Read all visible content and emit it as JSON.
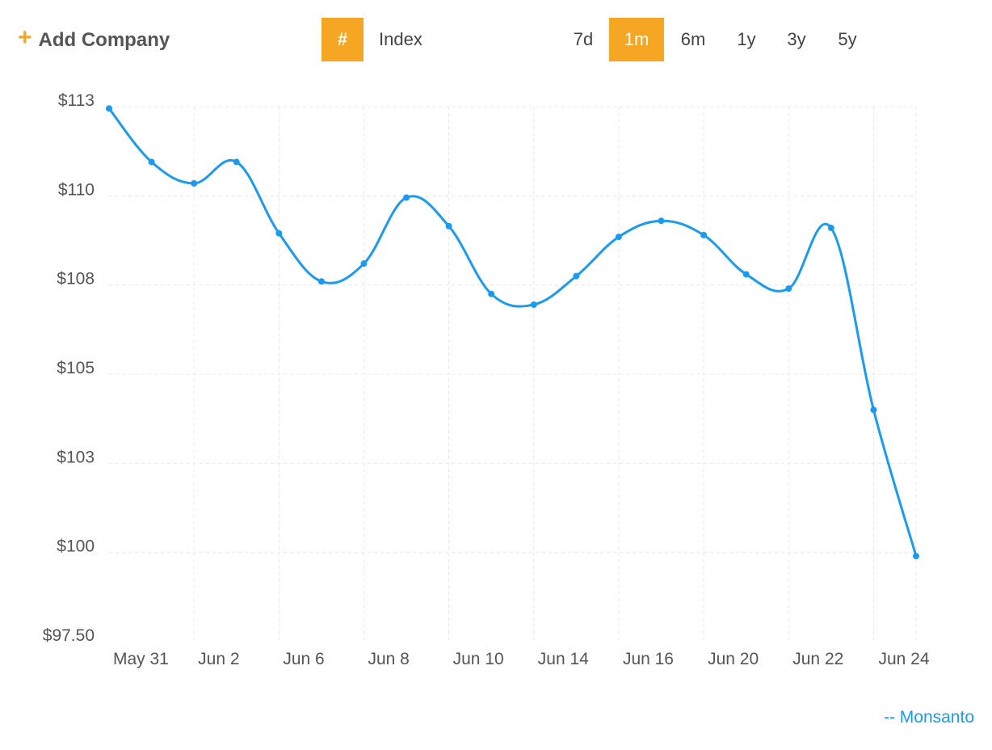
{
  "toolbar": {
    "add_company_label": "Add Company",
    "mode_hash_label": "#",
    "mode_index_label": "Index",
    "ranges": [
      "7d",
      "1m",
      "6m",
      "1y",
      "3y",
      "5y"
    ],
    "active_range": "1m"
  },
  "colors": {
    "accent": "#f5a623",
    "series": "#1a9bf0",
    "grid": "#e8e8e8"
  },
  "chart_data": {
    "type": "line",
    "title": "",
    "xlabel": "",
    "ylabel": "",
    "x_tick_labels": [
      "May 31",
      "Jun 2",
      "Jun 6",
      "Jun 8",
      "Jun 10",
      "Jun 14",
      "Jun 16",
      "Jun 20",
      "Jun 22",
      "Jun 24"
    ],
    "y_tick_labels": [
      "$113",
      "$110",
      "$108",
      "$105",
      "$103",
      "$100",
      "$97.50"
    ],
    "y_tick_values": [
      112.5,
      110,
      107.5,
      105,
      102.5,
      100,
      97.5
    ],
    "ylim": [
      97.5,
      112.5
    ],
    "grid": true,
    "legend_position": "bottom-right",
    "series": [
      {
        "name": "Monsanto",
        "legend_label": "-- Monsanto",
        "values": [
          112.45,
          110.95,
          110.35,
          110.95,
          108.95,
          107.6,
          108.1,
          109.95,
          109.15,
          107.25,
          106.95,
          107.75,
          108.85,
          109.3,
          108.9,
          107.8,
          107.4,
          109.1,
          104.0,
          99.9
        ]
      }
    ]
  }
}
